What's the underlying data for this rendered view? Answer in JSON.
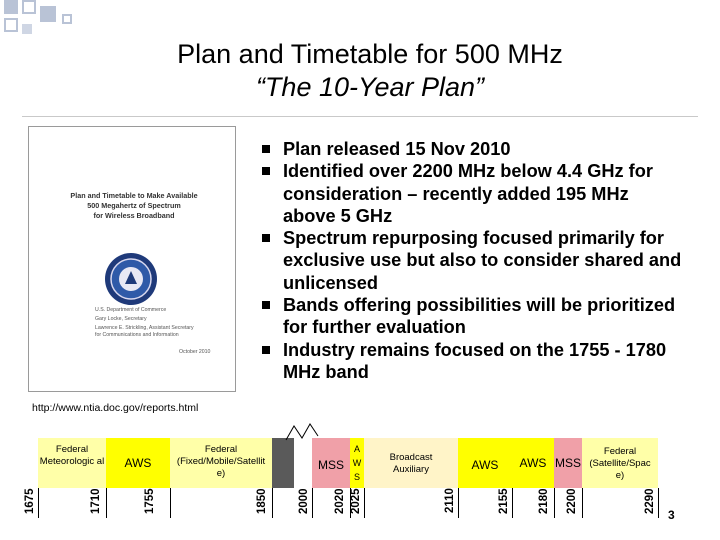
{
  "colors": {
    "federal": "#ffffa8",
    "aws": "#ffff00",
    "mss": "#f0a0a8",
    "broadcast": "#fff4c8",
    "dark_band": "#5a5a5a",
    "corner_squares": "#b9c3d6"
  },
  "title": {
    "line1": "Plan and Timetable for 500 MHz",
    "line2": "“The 10-Year Plan”"
  },
  "report_image": {
    "title_lines": [
      "Plan and Timetable to Make Available",
      "500 Megahertz of Spectrum",
      "for Wireless Broadband"
    ],
    "dept_lines": [
      "U.S. Department of Commerce",
      "Gary Locke, Secretary",
      "Lawrence E. Strickling, Assistant Secretary",
      "for Communications and Information"
    ],
    "date": "October 2010",
    "seal_icon": "doc-seal-icon"
  },
  "url": "http://www.ntia.doc.gov/reports.html",
  "bullets": [
    "Plan released 15 Nov 2010",
    "Identified over 2200 MHz below 4.4 GHz for consideration – recently added 195 MHz above 5 GHz",
    "Spectrum repurposing focused primarily for exclusive use but also to consider shared and unlicensed",
    "Bands offering possibilities will be prioritized for further evaluation",
    "Industry remains focused on the 1755 - 1780 MHz band"
  ],
  "bands": {
    "federal_met": "Federal Meteorologic al",
    "aws1": "AWS",
    "federal_fms": "Federal (Fixed/Mobile/Satellit e)",
    "mss1": "MSS",
    "aws_s_chars": [
      "A",
      "W",
      "S"
    ],
    "broadcast": "Broadcast Auxiliary",
    "aws2": "AWS",
    "aws3": "AWS",
    "mss2": "MSS",
    "federal_sat": "Federal (Satellite/Spac e)"
  },
  "frequencies": {
    "f1675": "1675",
    "f1710": "1710",
    "f1755": "1755",
    "f1850": "1850",
    "f2000": "2000",
    "f2020": "2020",
    "f2025": "2025",
    "f2110": "2110",
    "f2155": "2155",
    "f2180": "2180",
    "f2200": "2200",
    "f2290": "2290"
  },
  "page_number": "3"
}
